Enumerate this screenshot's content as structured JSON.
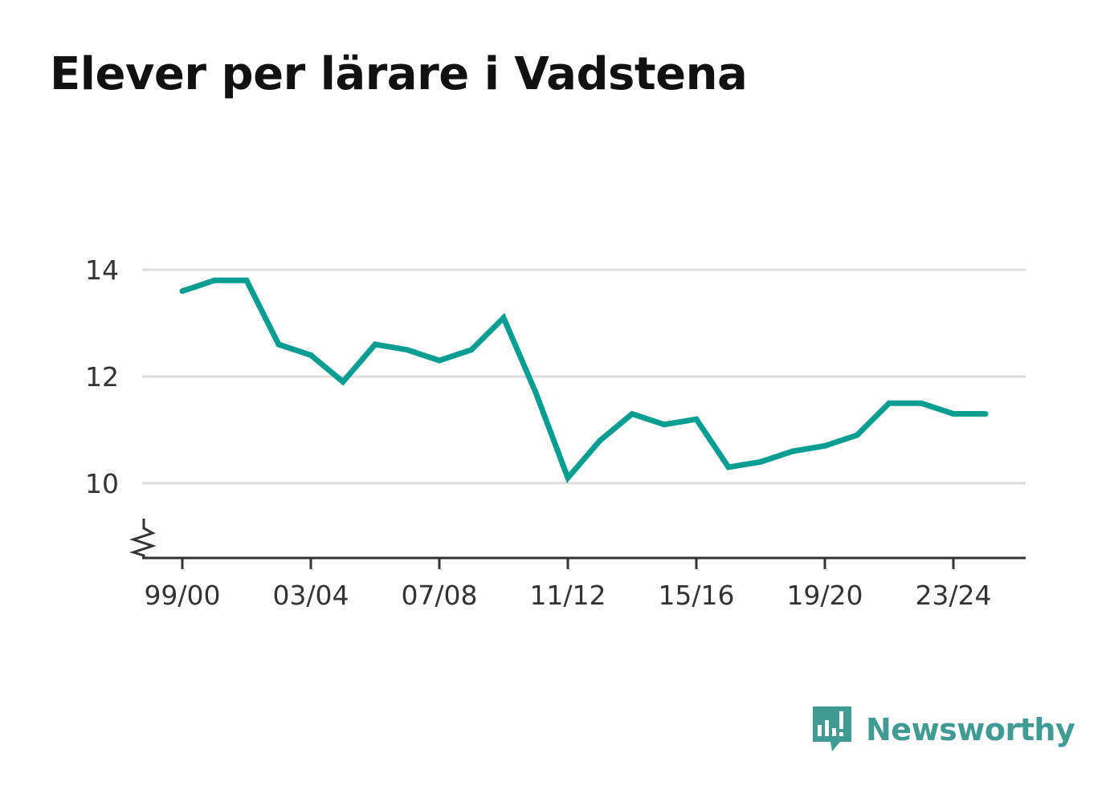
{
  "colors": {
    "line": "#0a9e93",
    "grid": "#dddddd",
    "axis": "#333333",
    "brand": "#3f9b93"
  },
  "icons": {
    "brand": "newsworthy-logo-icon",
    "axis_break": "axis-break-icon"
  },
  "brand": {
    "name": "Newsworthy"
  },
  "chart_data": {
    "type": "line",
    "title": "Elever per lärare i Vadstena",
    "xlabel": "",
    "ylabel": "",
    "ylim": [
      8.6,
      14
    ],
    "yticks": [
      10,
      12,
      14
    ],
    "grid": true,
    "legend": "none",
    "y_axis_break": true,
    "x_tick_labels": [
      "99/00",
      "03/04",
      "07/08",
      "11/12",
      "15/16",
      "19/20",
      "23/24"
    ],
    "categories": [
      "99/00",
      "00/01",
      "01/02",
      "02/03",
      "03/04",
      "04/05",
      "05/06",
      "06/07",
      "07/08",
      "08/09",
      "09/10",
      "10/11",
      "11/12",
      "12/13",
      "13/14",
      "14/15",
      "15/16",
      "16/17",
      "17/18",
      "18/19",
      "19/20",
      "20/21",
      "21/22",
      "22/23",
      "23/24",
      "24/25"
    ],
    "series": [
      {
        "values": [
          13.6,
          13.8,
          13.8,
          12.6,
          12.4,
          11.9,
          12.6,
          12.5,
          12.3,
          12.5,
          13.1,
          11.7,
          10.1,
          10.8,
          11.3,
          11.1,
          11.2,
          10.3,
          10.4,
          10.6,
          10.7,
          10.9,
          11.5,
          11.5,
          11.3,
          11.3
        ]
      }
    ]
  }
}
